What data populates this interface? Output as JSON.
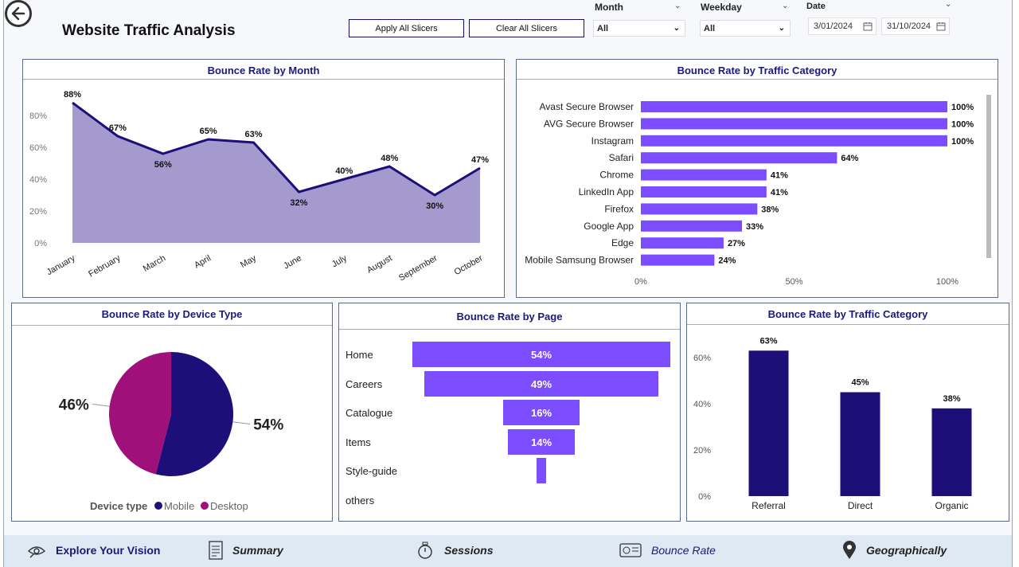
{
  "header": {
    "title": "Website Traffic Analysis",
    "apply_label": "Apply All Slicers",
    "clear_label": "Clear All Slicers"
  },
  "filters": {
    "month": {
      "label": "Month",
      "value": "All"
    },
    "weekday": {
      "label": "Weekday",
      "value": "All"
    },
    "date": {
      "label": "Date",
      "start": "3/01/2024",
      "end": "31/10/2024"
    }
  },
  "colors": {
    "accent": "#7b4dff",
    "dark": "#1e0e7a",
    "area": "#a49acd",
    "magenta": "#a0107a"
  },
  "chart_data": [
    {
      "type": "area",
      "title": "Bounce Rate by Month",
      "categories": [
        "January",
        "February",
        "March",
        "April",
        "May",
        "June",
        "July",
        "August",
        "September",
        "October"
      ],
      "values": [
        88,
        67,
        56,
        65,
        63,
        32,
        40,
        48,
        30,
        47
      ],
      "labels": [
        "88%",
        "67%",
        "56%",
        "65%",
        "63%",
        "32%",
        "40%",
        "48%",
        "30%",
        "47%"
      ],
      "yticks": [
        "0%",
        "20%",
        "40%",
        "60%",
        "80%"
      ],
      "ylim": [
        0,
        100
      ]
    },
    {
      "type": "bar",
      "title": "Bounce Rate by Traffic Category",
      "categories": [
        "Avast Secure Browser",
        "AVG Secure Browser",
        "Instagram",
        "Safari",
        "Chrome",
        "LinkedIn App",
        "Firefox",
        "Google App",
        "Edge",
        "Mobile Samsung Browser"
      ],
      "values": [
        100,
        100,
        100,
        64,
        41,
        41,
        38,
        33,
        27,
        24
      ],
      "labels": [
        "100%",
        "100%",
        "100%",
        "64%",
        "41%",
        "41%",
        "38%",
        "33%",
        "27%",
        "24%"
      ],
      "xticks": [
        "0%",
        "50%",
        "100%"
      ],
      "xlim": [
        0,
        100
      ]
    },
    {
      "type": "pie",
      "title": "Bounce Rate by Device Type",
      "legend_title": "Device type",
      "slices": [
        {
          "name": "Mobile",
          "value": 54,
          "label": "54%"
        },
        {
          "name": "Desktop",
          "value": 46,
          "label": "46%"
        }
      ]
    },
    {
      "type": "bar",
      "title": "Bounce Rate by Page",
      "categories": [
        "Home",
        "Careers",
        "Catalogue",
        "Items",
        "Style-guide",
        "others"
      ],
      "values": [
        54,
        49,
        16,
        14,
        2,
        0
      ],
      "labels": [
        "54%",
        "49%",
        "16%",
        "14%",
        "",
        ""
      ]
    },
    {
      "type": "bar",
      "title": "Bounce Rate by Traffic Category",
      "categories": [
        "Referral",
        "Direct",
        "Organic"
      ],
      "values": [
        63,
        45,
        38
      ],
      "labels": [
        "63%",
        "45%",
        "38%"
      ],
      "yticks": [
        "0%",
        "20%",
        "40%",
        "60%"
      ],
      "ylim": [
        0,
        70
      ]
    }
  ],
  "nav": {
    "explore": "Explore Your Vision",
    "summary": "Summary",
    "sessions": "Sessions",
    "bounce": "Bounce Rate",
    "geo": "Geographically"
  }
}
